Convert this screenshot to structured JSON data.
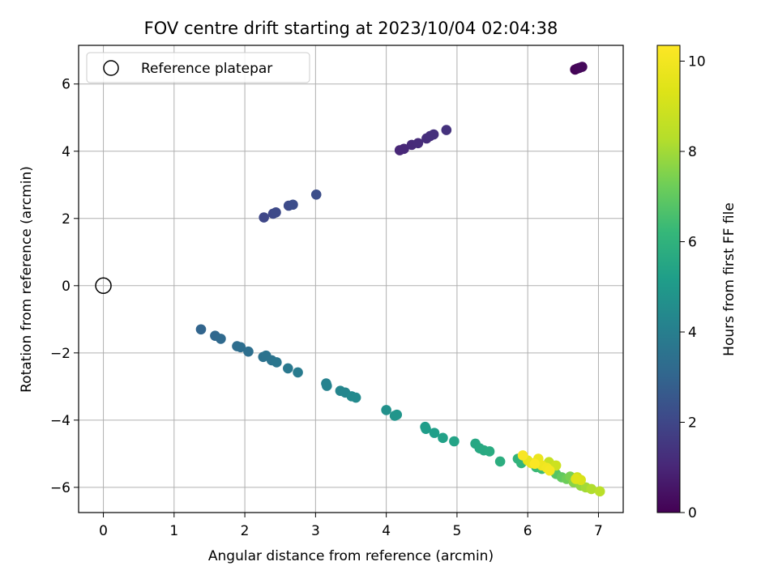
{
  "chart_data": {
    "type": "scatter",
    "title": "FOV centre drift starting at 2023/10/04 02:04:38",
    "xlabel": "Angular distance from reference (arcmin)",
    "ylabel": "Rotation from reference (arcmin)",
    "xlim": [
      -0.35,
      7.35
    ],
    "ylim": [
      -6.75,
      7.15
    ],
    "xticks": [
      0,
      1,
      2,
      3,
      4,
      5,
      6,
      7
    ],
    "xtick_labels": [
      "0",
      "1",
      "2",
      "3",
      "4",
      "5",
      "6",
      "7"
    ],
    "yticks": [
      -6,
      -4,
      -2,
      0,
      2,
      4,
      6
    ],
    "ytick_labels": [
      "−6",
      "−4",
      "−2",
      "0",
      "2",
      "4",
      "6"
    ],
    "grid": true,
    "colormap": "viridis",
    "colorbar": {
      "label": "Hours from first FF file",
      "range": [
        0,
        10.35
      ],
      "ticks": [
        0,
        2,
        4,
        6,
        8,
        10
      ],
      "tick_labels": [
        "0",
        "2",
        "4",
        "6",
        "8",
        "10"
      ]
    },
    "legend": {
      "position": "upper-left",
      "entries": [
        "Reference platepar"
      ]
    },
    "reference_point": {
      "x": 0,
      "y": 0,
      "marker": "open-circle",
      "color": "#000000"
    },
    "points": [
      {
        "x": 6.67,
        "y": 6.43,
        "c": 0.05
      },
      {
        "x": 6.7,
        "y": 6.46,
        "c": 0.1
      },
      {
        "x": 6.73,
        "y": 6.48,
        "c": 0.15
      },
      {
        "x": 6.77,
        "y": 6.51,
        "c": 0.2
      },
      {
        "x": 4.19,
        "y": 4.03,
        "c": 1.0
      },
      {
        "x": 4.25,
        "y": 4.07,
        "c": 1.05
      },
      {
        "x": 4.36,
        "y": 4.19,
        "c": 1.1
      },
      {
        "x": 4.45,
        "y": 4.24,
        "c": 1.15
      },
      {
        "x": 4.57,
        "y": 4.38,
        "c": 1.2
      },
      {
        "x": 4.62,
        "y": 4.45,
        "c": 1.25
      },
      {
        "x": 4.67,
        "y": 4.5,
        "c": 1.3
      },
      {
        "x": 4.85,
        "y": 4.63,
        "c": 1.35
      },
      {
        "x": 2.27,
        "y": 2.03,
        "c": 2.0
      },
      {
        "x": 2.4,
        "y": 2.14,
        "c": 2.05
      },
      {
        "x": 2.44,
        "y": 2.18,
        "c": 2.1
      },
      {
        "x": 2.62,
        "y": 2.38,
        "c": 2.15
      },
      {
        "x": 2.68,
        "y": 2.41,
        "c": 2.2
      },
      {
        "x": 3.01,
        "y": 2.71,
        "c": 2.25
      },
      {
        "x": 1.38,
        "y": -1.3,
        "c": 3.0
      },
      {
        "x": 1.58,
        "y": -1.49,
        "c": 3.1
      },
      {
        "x": 1.66,
        "y": -1.58,
        "c": 3.2
      },
      {
        "x": 1.89,
        "y": -1.8,
        "c": 3.3
      },
      {
        "x": 1.94,
        "y": -1.83,
        "c": 3.35
      },
      {
        "x": 2.05,
        "y": -1.96,
        "c": 3.4
      },
      {
        "x": 2.26,
        "y": -2.12,
        "c": 3.5
      },
      {
        "x": 2.3,
        "y": -2.08,
        "c": 3.55
      },
      {
        "x": 2.38,
        "y": -2.22,
        "c": 3.6
      },
      {
        "x": 2.45,
        "y": -2.28,
        "c": 3.65
      },
      {
        "x": 2.61,
        "y": -2.46,
        "c": 3.75
      },
      {
        "x": 2.75,
        "y": -2.58,
        "c": 3.85
      },
      {
        "x": 3.15,
        "y": -2.91,
        "c": 4.1
      },
      {
        "x": 3.16,
        "y": -2.98,
        "c": 4.15
      },
      {
        "x": 3.35,
        "y": -3.13,
        "c": 4.25
      },
      {
        "x": 3.42,
        "y": -3.18,
        "c": 4.3
      },
      {
        "x": 3.51,
        "y": -3.29,
        "c": 4.4
      },
      {
        "x": 3.57,
        "y": -3.33,
        "c": 4.45
      },
      {
        "x": 4.0,
        "y": -3.7,
        "c": 4.7
      },
      {
        "x": 4.12,
        "y": -3.87,
        "c": 4.8
      },
      {
        "x": 4.15,
        "y": -3.84,
        "c": 4.85
      },
      {
        "x": 4.55,
        "y": -4.2,
        "c": 5.1
      },
      {
        "x": 4.56,
        "y": -4.26,
        "c": 5.15
      },
      {
        "x": 4.68,
        "y": -4.38,
        "c": 5.2
      },
      {
        "x": 4.8,
        "y": -4.53,
        "c": 5.3
      },
      {
        "x": 4.96,
        "y": -4.63,
        "c": 5.4
      },
      {
        "x": 5.26,
        "y": -4.7,
        "c": 5.55
      },
      {
        "x": 5.32,
        "y": -4.84,
        "c": 5.6
      },
      {
        "x": 5.38,
        "y": -4.9,
        "c": 5.65
      },
      {
        "x": 5.46,
        "y": -4.93,
        "c": 5.7
      },
      {
        "x": 5.61,
        "y": -5.23,
        "c": 5.8
      },
      {
        "x": 5.86,
        "y": -5.15,
        "c": 6.0
      },
      {
        "x": 5.91,
        "y": -5.28,
        "c": 6.05
      },
      {
        "x": 6.12,
        "y": -5.4,
        "c": 6.3
      },
      {
        "x": 6.2,
        "y": -5.45,
        "c": 6.4
      },
      {
        "x": 6.28,
        "y": -5.35,
        "c": 6.5
      },
      {
        "x": 6.4,
        "y": -5.6,
        "c": 6.8
      },
      {
        "x": 6.48,
        "y": -5.7,
        "c": 7.0
      },
      {
        "x": 6.55,
        "y": -5.75,
        "c": 7.2
      },
      {
        "x": 6.6,
        "y": -5.68,
        "c": 7.4
      },
      {
        "x": 6.65,
        "y": -5.85,
        "c": 7.6
      },
      {
        "x": 6.75,
        "y": -5.95,
        "c": 7.8
      },
      {
        "x": 6.82,
        "y": -6.0,
        "c": 8.0
      },
      {
        "x": 6.9,
        "y": -6.05,
        "c": 8.2
      },
      {
        "x": 7.02,
        "y": -6.12,
        "c": 8.4
      },
      {
        "x": 6.3,
        "y": -5.25,
        "c": 8.7
      },
      {
        "x": 6.4,
        "y": -5.35,
        "c": 8.9
      },
      {
        "x": 6.7,
        "y": -5.7,
        "c": 9.0
      },
      {
        "x": 6.75,
        "y": -5.78,
        "c": 9.2
      },
      {
        "x": 6.68,
        "y": -5.75,
        "c": 9.4
      },
      {
        "x": 6.0,
        "y": -5.2,
        "c": 9.6
      },
      {
        "x": 6.05,
        "y": -5.28,
        "c": 9.7
      },
      {
        "x": 6.15,
        "y": -5.15,
        "c": 9.8
      },
      {
        "x": 6.2,
        "y": -5.35,
        "c": 9.9
      },
      {
        "x": 6.27,
        "y": -5.42,
        "c": 10.0
      },
      {
        "x": 6.31,
        "y": -5.5,
        "c": 10.1
      },
      {
        "x": 5.93,
        "y": -5.05,
        "c": 10.2
      },
      {
        "x": 6.1,
        "y": -5.3,
        "c": 10.3
      }
    ]
  }
}
